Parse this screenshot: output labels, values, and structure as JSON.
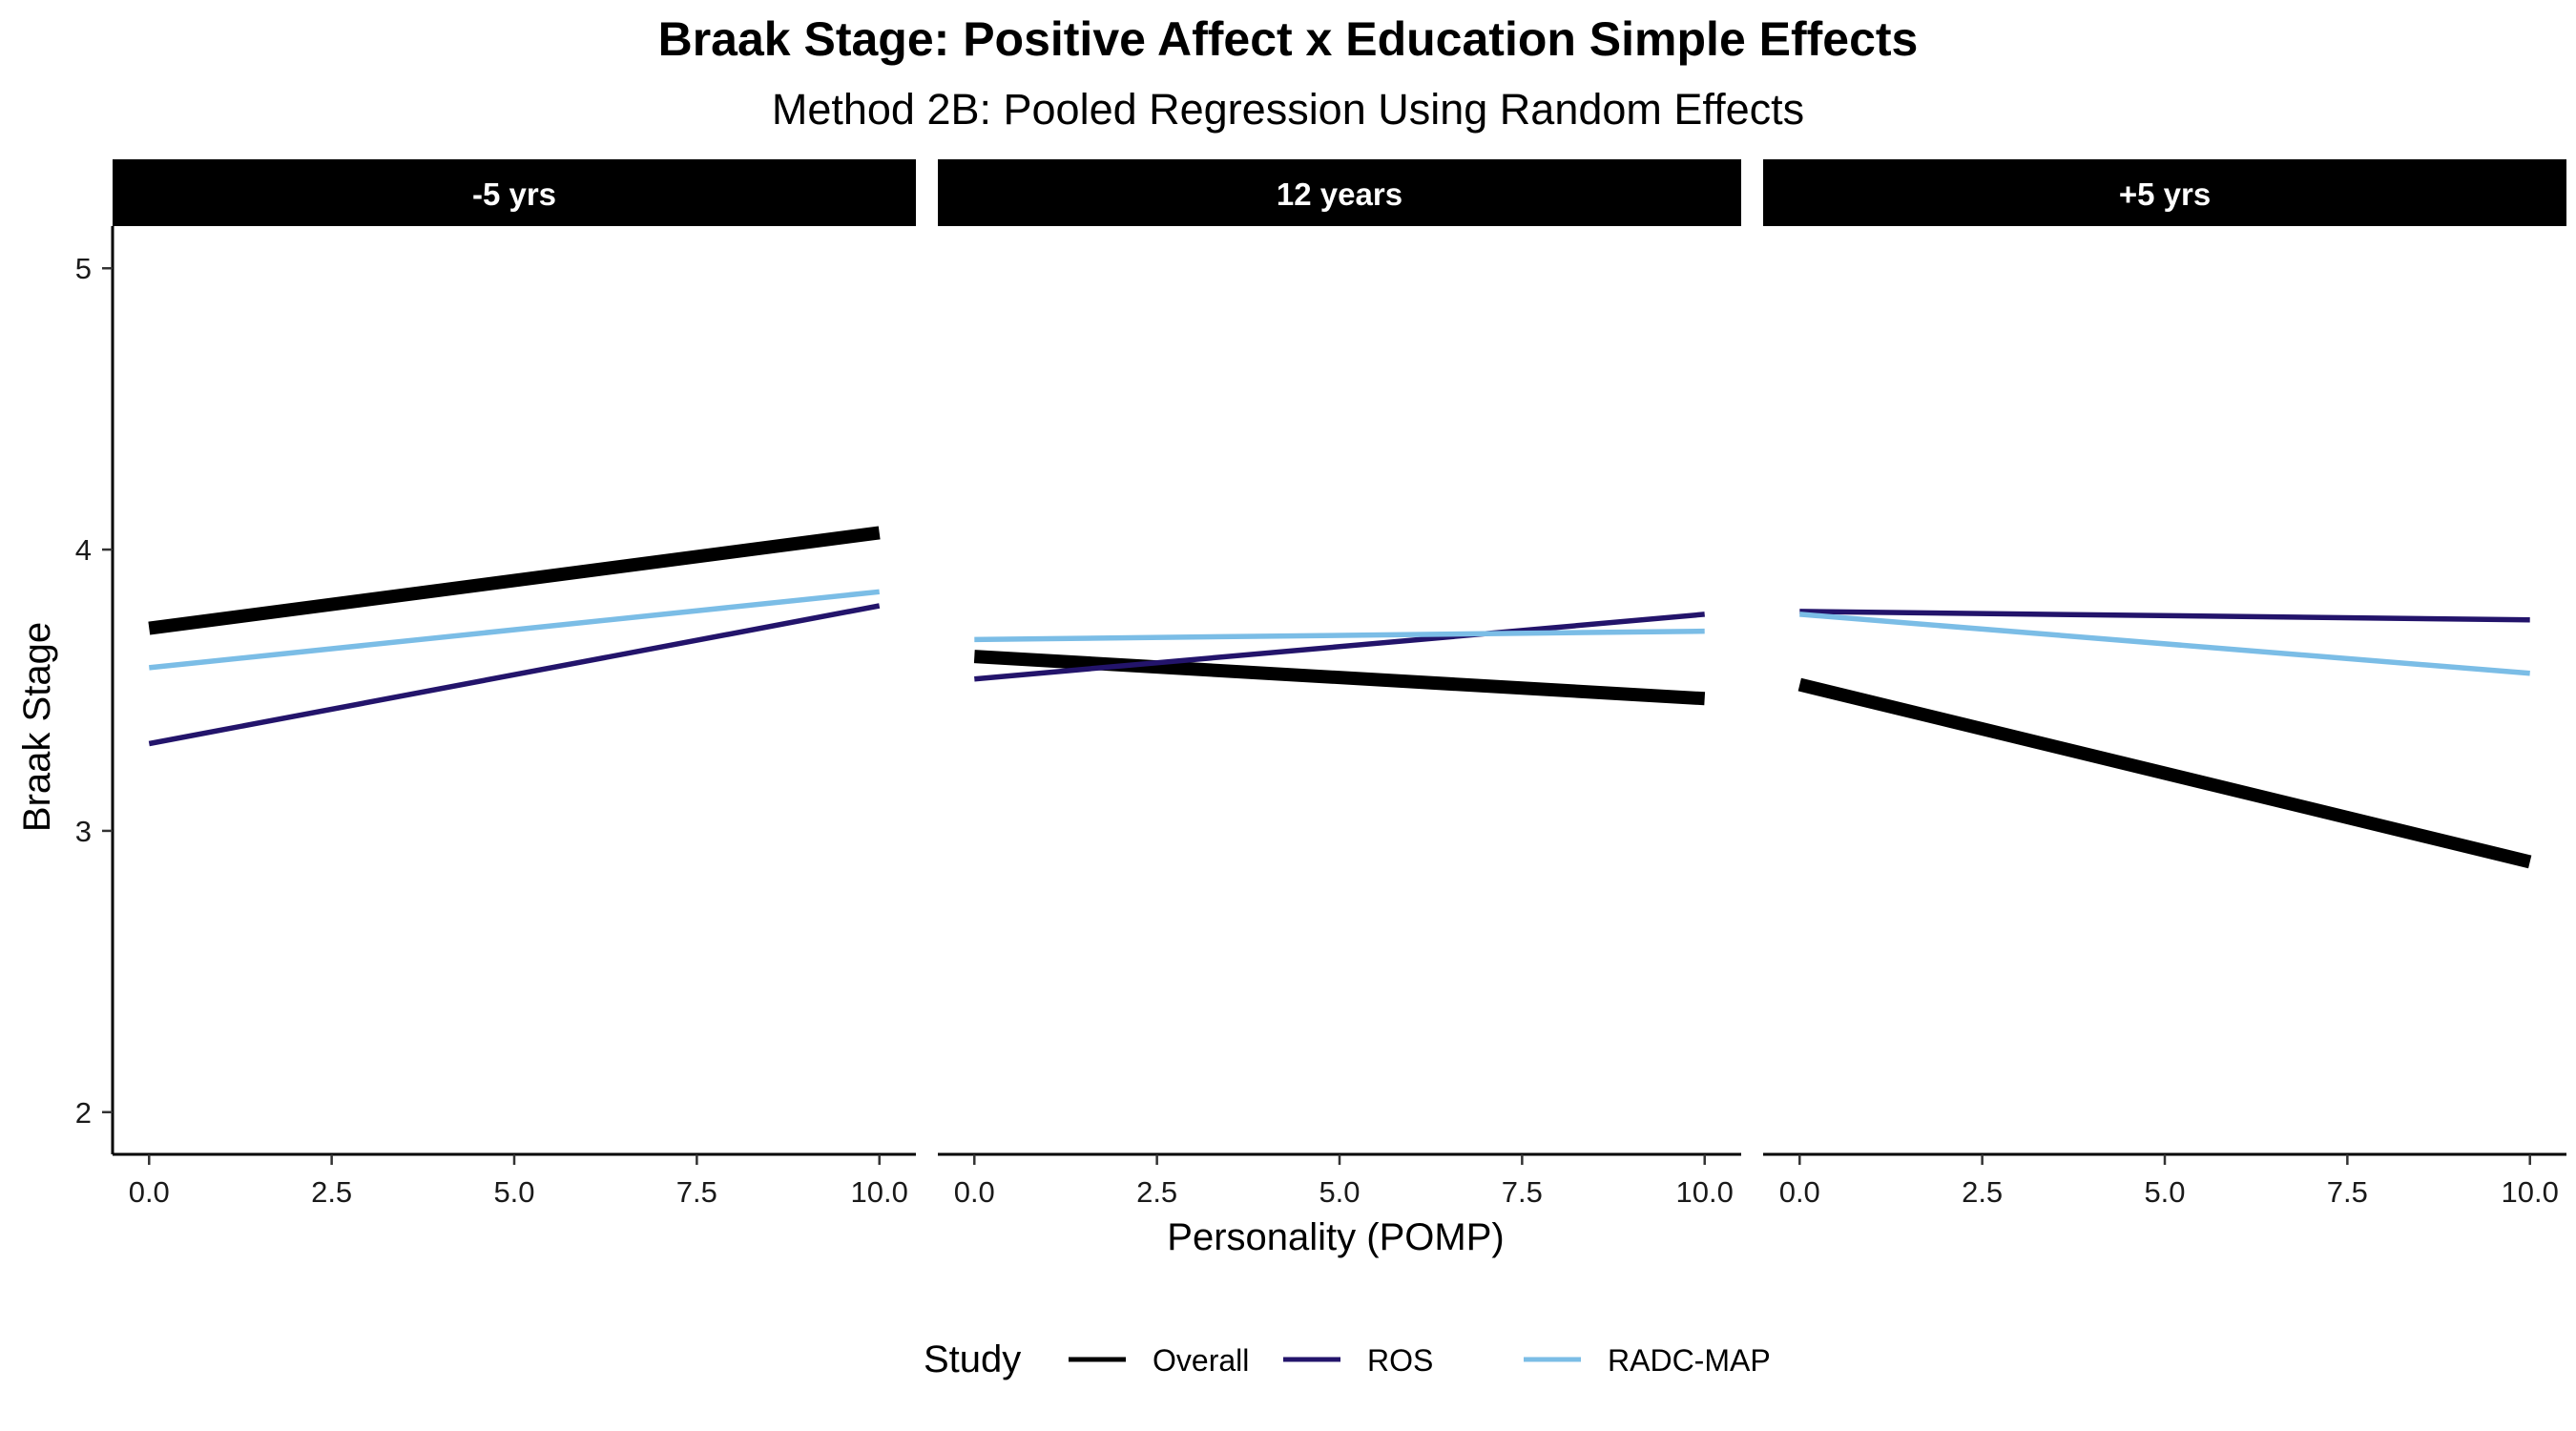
{
  "chart_data": {
    "type": "line",
    "title": "Braak Stage: Positive Affect x Education Simple Effects",
    "subtitle": "Method 2B: Pooled Regression Using Random Effects",
    "xlabel": "Personality (POMP)",
    "ylabel": "Braak Stage",
    "xlim": [
      -0.5,
      10.5
    ],
    "ylim": [
      1.85,
      5.15
    ],
    "x_ticks": [
      0,
      2.5,
      5,
      7.5,
      10
    ],
    "x_tick_labels": [
      "0.0",
      "2.5",
      "5.0",
      "7.5",
      "10.0"
    ],
    "y_ticks": [
      2,
      3,
      4,
      5
    ],
    "y_tick_labels": [
      "2",
      "3",
      "4",
      "5"
    ],
    "grid": false,
    "legend": {
      "title": "Study",
      "position": "bottom",
      "entries": [
        "Overall",
        "ROS",
        "RADC-MAP"
      ]
    },
    "colors": {
      "Overall": "#000000",
      "ROS": "#23146b",
      "RADC-MAP": "#7bbde6"
    },
    "facets": [
      {
        "label": "-5 yrs",
        "series": [
          {
            "name": "Overall",
            "x": [
              0,
              10
            ],
            "y": [
              3.72,
              4.06
            ]
          },
          {
            "name": "ROS",
            "x": [
              0,
              10
            ],
            "y": [
              3.31,
              3.8
            ]
          },
          {
            "name": "RADC-MAP",
            "x": [
              0,
              10
            ],
            "y": [
              3.58,
              3.85
            ]
          }
        ]
      },
      {
        "label": "12 years",
        "series": [
          {
            "name": "Overall",
            "x": [
              0,
              10
            ],
            "y": [
              3.62,
              3.47
            ]
          },
          {
            "name": "ROS",
            "x": [
              0,
              10
            ],
            "y": [
              3.54,
              3.77
            ]
          },
          {
            "name": "RADC-MAP",
            "x": [
              0,
              10
            ],
            "y": [
              3.68,
              3.71
            ]
          }
        ]
      },
      {
        "label": "+5 yrs",
        "series": [
          {
            "name": "Overall",
            "x": [
              0,
              10
            ],
            "y": [
              3.52,
              2.89
            ]
          },
          {
            "name": "ROS",
            "x": [
              0,
              10
            ],
            "y": [
              3.78,
              3.75
            ]
          },
          {
            "name": "RADC-MAP",
            "x": [
              0,
              10
            ],
            "y": [
              3.77,
              3.56
            ]
          }
        ]
      }
    ]
  }
}
